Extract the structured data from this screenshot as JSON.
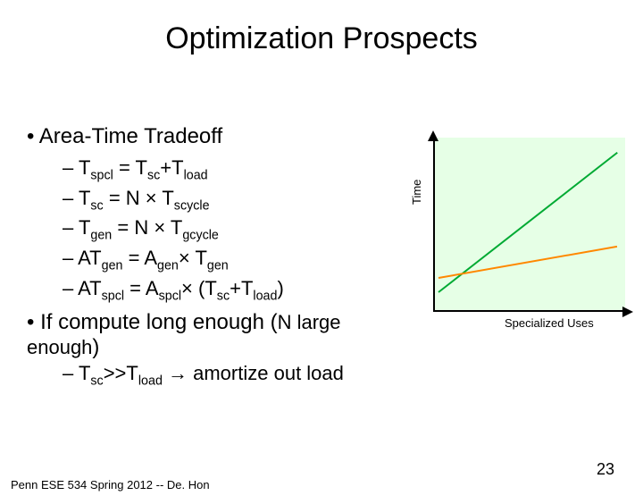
{
  "title": "Optimization Prospects",
  "bullet_main_1": "Area-Time Tradeoff",
  "equations": {
    "eq1_lhs": "T",
    "eq1_lhs_sub": "spcl",
    "eq1_eq": " = ",
    "eq1_r1": "T",
    "eq1_r1_sub": "sc",
    "eq1_plus": "+",
    "eq1_r2": "T",
    "eq1_r2_sub": "load",
    "eq2_lhs": "T",
    "eq2_lhs_sub": "sc",
    "eq2_eq": " = N × ",
    "eq2_r": "T",
    "eq2_r_sub": "scycle",
    "eq3_lhs": "T",
    "eq3_lhs_sub": "gen",
    "eq3_eq": " = N × ",
    "eq3_r": "T",
    "eq3_r_sub": "gcycle",
    "eq4_lhs": "AT",
    "eq4_lhs_sub": "gen",
    "eq4_eq": " = ",
    "eq4_r1": "A",
    "eq4_r1_sub": "gen",
    "eq4_mul": "× ",
    "eq4_r2": "T",
    "eq4_r2_sub": "gen",
    "eq5_lhs": "AT",
    "eq5_lhs_sub": "spcl",
    "eq5_eq": " = ",
    "eq5_r1": "A",
    "eq5_r1_sub": "spcl",
    "eq5_mul": "× (",
    "eq5_r2": "T",
    "eq5_r2_sub": "sc",
    "eq5_plus": "+",
    "eq5_r3": "T",
    "eq5_r3_sub": "load",
    "eq5_close": ")"
  },
  "bullet_main_2a": "If compute long enough (",
  "bullet_main_2b": "N large enough",
  "bullet_main_2c": ")",
  "implication_a": "T",
  "implication_a_sub": "sc",
  "implication_gt": ">>",
  "implication_b": "T",
  "implication_b_sub": "load",
  "implication_arrow": " → ",
  "implication_text": "amortize out load",
  "chart": {
    "ylabel": "Time",
    "xlabel": "Specialized Uses",
    "background": "#e6ffe6",
    "axis_color": "#000000",
    "lines": [
      {
        "color": "#00aa33",
        "x1_pct": 2,
        "y1_pct": 88,
        "x2_pct": 95,
        "y2_pct": 8,
        "width": 2
      },
      {
        "color": "#ff8800",
        "x1_pct": 2,
        "y1_pct": 80,
        "x2_pct": 95,
        "y2_pct": 62,
        "width": 2
      }
    ]
  },
  "footer": "Penn ESE 534 Spring 2012 -- De. Hon",
  "page_number": "23"
}
